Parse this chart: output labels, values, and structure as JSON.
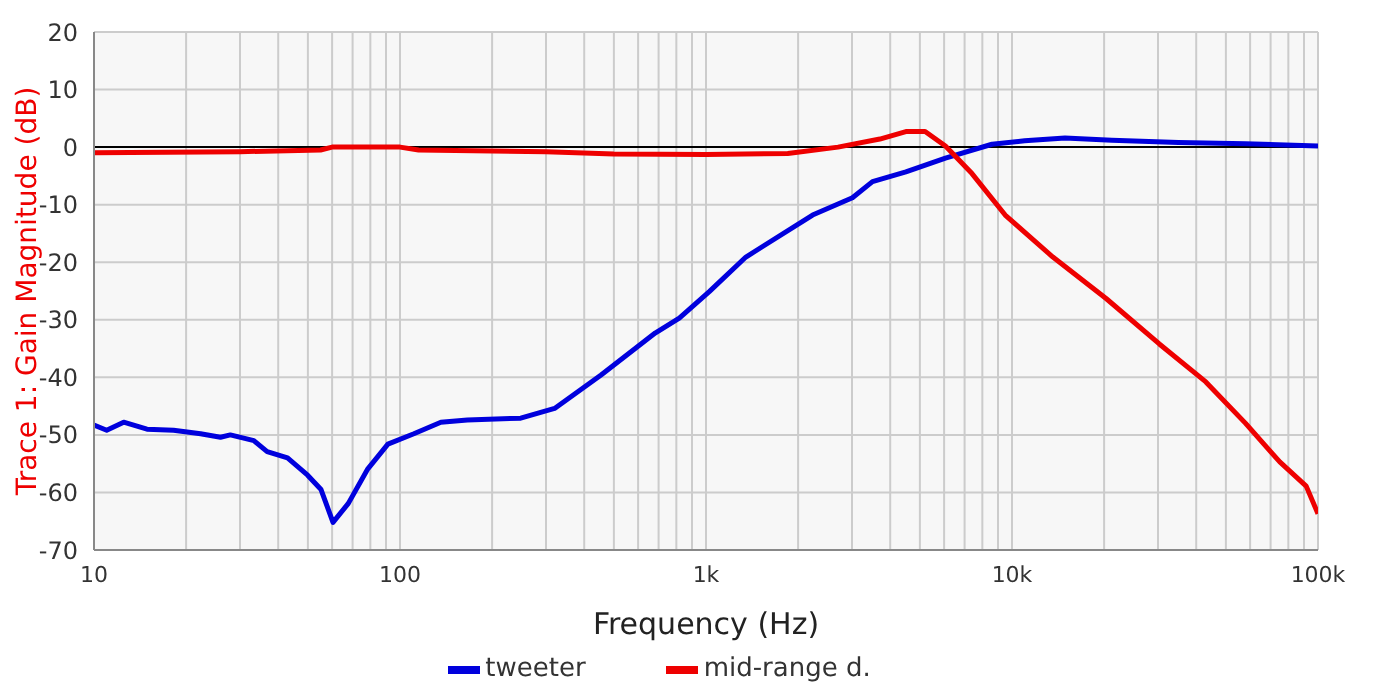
{
  "chart_data": {
    "type": "line",
    "xlabel": "Frequency (Hz)",
    "ylabel": "Trace 1: Gain Magnitude (dB)",
    "log": "x",
    "xlim": [
      10,
      100000
    ],
    "xticks": [
      {
        "value": 10,
        "label": "10"
      },
      {
        "value": 20,
        "label": null
      },
      {
        "value": 30,
        "label": null
      },
      {
        "value": 40,
        "label": null
      },
      {
        "value": 50,
        "label": null
      },
      {
        "value": 60,
        "label": null
      },
      {
        "value": 70,
        "label": null
      },
      {
        "value": 80,
        "label": null
      },
      {
        "value": 90,
        "label": null
      },
      {
        "value": 100,
        "label": "100"
      },
      {
        "value": 200,
        "label": null
      },
      {
        "value": 300,
        "label": null
      },
      {
        "value": 400,
        "label": null
      },
      {
        "value": 500,
        "label": null
      },
      {
        "value": 600,
        "label": null
      },
      {
        "value": 700,
        "label": null
      },
      {
        "value": 800,
        "label": null
      },
      {
        "value": 900,
        "label": null
      },
      {
        "value": 1000,
        "label": "1k"
      },
      {
        "value": 2000,
        "label": null
      },
      {
        "value": 3000,
        "label": null
      },
      {
        "value": 4000,
        "label": null
      },
      {
        "value": 5000,
        "label": null
      },
      {
        "value": 6000,
        "label": null
      },
      {
        "value": 7000,
        "label": null
      },
      {
        "value": 8000,
        "label": null
      },
      {
        "value": 9000,
        "label": null
      },
      {
        "value": 10000,
        "label": "10k"
      },
      {
        "value": 20000,
        "label": null
      },
      {
        "value": 30000,
        "label": null
      },
      {
        "value": 40000,
        "label": null
      },
      {
        "value": 50000,
        "label": null
      },
      {
        "value": 60000,
        "label": null
      },
      {
        "value": 70000,
        "label": null
      },
      {
        "value": 80000,
        "label": null
      },
      {
        "value": 90000,
        "label": null
      },
      {
        "value": 100000,
        "label": "100k"
      }
    ],
    "ylim": [
      -70,
      20
    ],
    "yticks": [
      -70,
      -60,
      -50,
      -40,
      -30,
      -20,
      -10,
      0,
      10,
      20
    ],
    "grid": true,
    "legend": "bottom",
    "marker": "none",
    "line_style": "solid",
    "ref_lines": [
      {
        "axis": "y",
        "value": 0,
        "color": "#000000"
      }
    ],
    "series": [
      {
        "name": "tweeter",
        "color": "#0000dd",
        "x": [
          10,
          11,
          12.5,
          14.9,
          18.2,
          22.3,
          25.9,
          27.9,
          33.3,
          36.8,
          42.9,
          49.9,
          55.2,
          60.4,
          67.8,
          78.5,
          91.3,
          111,
          136,
          166,
          248,
          320,
          454,
          682,
          818,
          1025,
          1350,
          2230,
          3010,
          3500,
          4500,
          6060,
          8600,
          11000,
          14900,
          21200,
          35000,
          58000,
          100000
        ],
        "values": [
          -48.3,
          -49.2,
          -47.8,
          -49,
          -49.2,
          -49.8,
          -50.4,
          -50,
          -51,
          -52.9,
          -54,
          -57,
          -59.5,
          -65.2,
          -61.9,
          -55.9,
          -51.6,
          -49.8,
          -47.8,
          -47.4,
          -47.1,
          -45.4,
          -39.6,
          -32.3,
          -29.7,
          -25.1,
          -19.1,
          -11.8,
          -8.8,
          -6,
          -4.3,
          -1.9,
          0.5,
          1.1,
          1.6,
          1.2,
          0.8,
          0.6,
          0.2
        ]
      },
      {
        "name": "mid-range d.",
        "color": "#ee0000",
        "x": [
          10,
          30,
          55,
          60,
          100,
          115,
          300,
          500,
          1000,
          1850,
          2700,
          3700,
          4500,
          5200,
          6060,
          7400,
          9500,
          13600,
          20300,
          30300,
          43000,
          58000,
          75000,
          91500,
          100000
        ],
        "values": [
          -1,
          -0.8,
          -0.5,
          0,
          0,
          -0.5,
          -0.8,
          -1.2,
          -1.3,
          -1.1,
          0,
          1.4,
          2.7,
          2.7,
          0.2,
          -4.6,
          -11.8,
          -19.1,
          -26.3,
          -34.2,
          -40.8,
          -48,
          -54.7,
          -58.9,
          -63.7
        ]
      }
    ]
  }
}
